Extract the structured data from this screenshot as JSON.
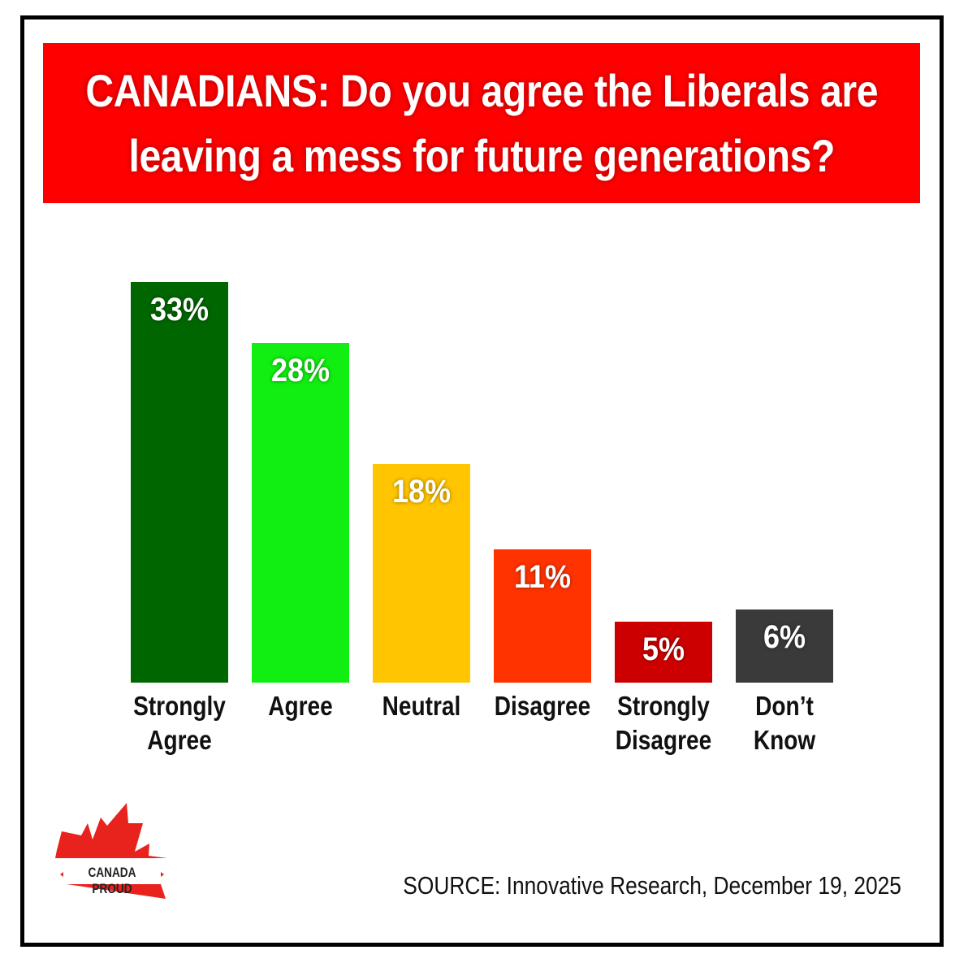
{
  "title": "CANADIANS: Do you agree the Liberals are leaving a mess for future generations?",
  "title_lines": [
    "CANADIANS: Do you agree the Liberals are",
    "leaving a mess for future generations?"
  ],
  "chart_data": {
    "type": "bar",
    "categories": [
      "Strongly\nAgree",
      "Agree",
      "Neutral",
      "Disagree",
      "Strongly\nDisagree",
      "Don’t\nKnow"
    ],
    "values": [
      33,
      28,
      18,
      11,
      5,
      6
    ],
    "value_labels": [
      "33%",
      "28%",
      "18%",
      "11%",
      "5%",
      "6%"
    ],
    "colors": [
      "#006600",
      "#11ee11",
      "#ffc500",
      "#ff3300",
      "#cc0000",
      "#3a3a3a"
    ],
    "unit": "%",
    "grid": false,
    "ylim": [
      0,
      33
    ]
  },
  "source": "SOURCE: Innovative Research, December 19, 2025",
  "logo": {
    "text": "CANADA PROUD",
    "color": "#e8231d"
  },
  "colors": {
    "banner": "#ff0000",
    "frame": "#000000"
  }
}
